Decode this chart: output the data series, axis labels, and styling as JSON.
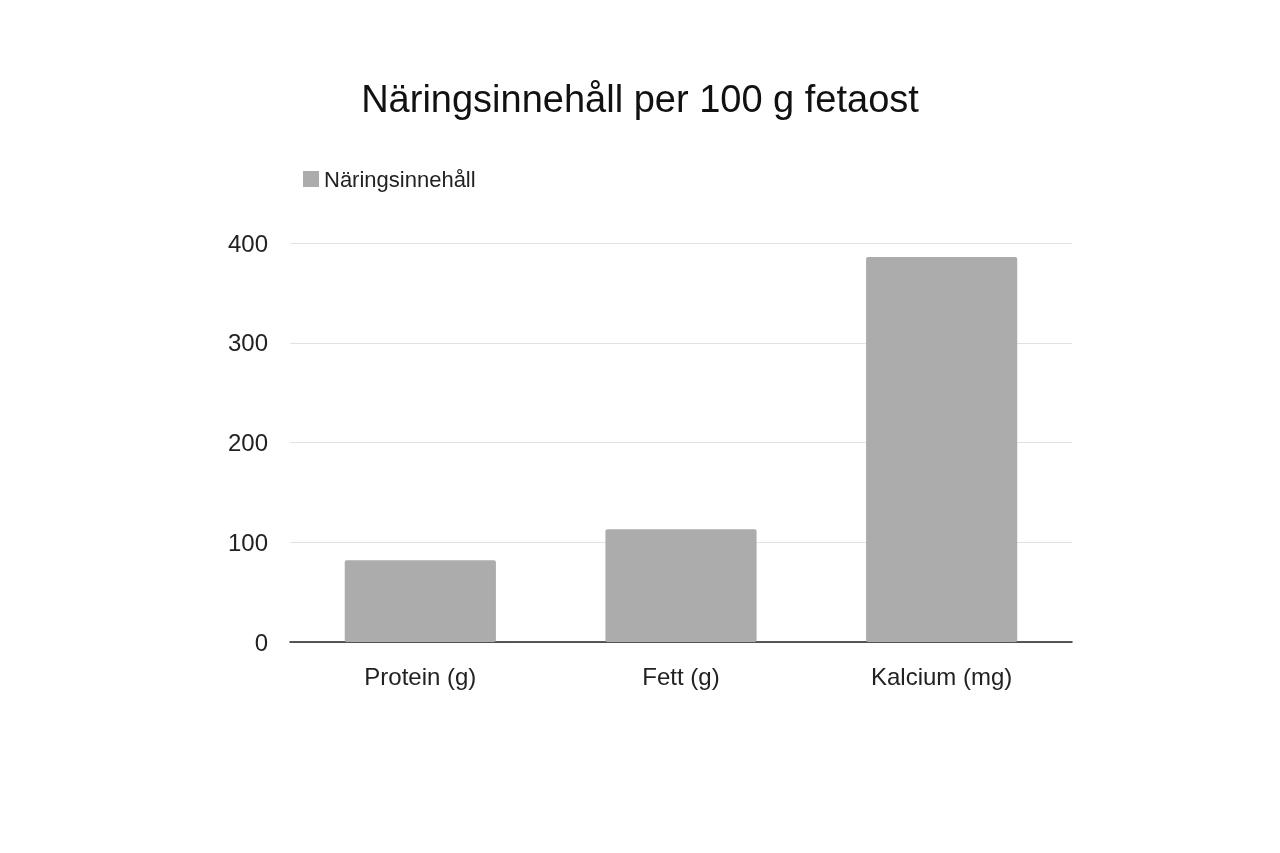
{
  "chart_data": {
    "type": "bar",
    "title": "Näringsinnehåll per 100 g fetaost",
    "categories": [
      "Protein (g)",
      "Fett (g)",
      "Kalcium (mg)"
    ],
    "series": [
      {
        "name": "Näringsinnehåll",
        "color": "#acacac",
        "values": [
          82,
          113,
          386
        ]
      }
    ],
    "ylim": [
      0,
      400
    ],
    "yticks": [
      0,
      100,
      200,
      300,
      400
    ],
    "grid": "y",
    "legend": "top left"
  }
}
